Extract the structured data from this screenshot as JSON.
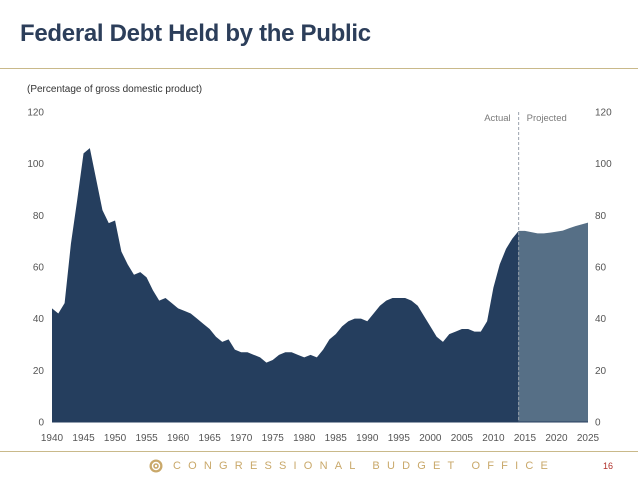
{
  "slide": {
    "title": "Federal Debt Held by the Public",
    "subtitle": "(Percentage of gross domestic product)",
    "footer": "CONGRESSIONAL BUDGET OFFICE",
    "page_number": "16"
  },
  "colors": {
    "actual": "#253e5e",
    "projected": "#566f86",
    "title": "#2c3e5a",
    "accent": "#c9a86a"
  },
  "chart_data": {
    "type": "area",
    "title": "Federal Debt Held by the Public",
    "ylabel": "Percentage of gross domestic product",
    "xlim": [
      1940,
      2025
    ],
    "ylim": [
      0,
      120
    ],
    "x_ticks": [
      1940,
      1945,
      1950,
      1955,
      1960,
      1965,
      1970,
      1975,
      1980,
      1985,
      1990,
      1995,
      2000,
      2005,
      2010,
      2015,
      2020,
      2025
    ],
    "y_ticks": [
      0,
      20,
      40,
      60,
      80,
      100,
      120
    ],
    "split_year": 2014,
    "annotations": {
      "left": "Actual",
      "right": "Projected"
    },
    "series": [
      {
        "name": "Actual",
        "x": [
          1940,
          1941,
          1942,
          1943,
          1944,
          1945,
          1946,
          1947,
          1948,
          1949,
          1950,
          1951,
          1952,
          1953,
          1954,
          1955,
          1956,
          1957,
          1958,
          1959,
          1960,
          1961,
          1962,
          1963,
          1964,
          1965,
          1966,
          1967,
          1968,
          1969,
          1970,
          1971,
          1972,
          1973,
          1974,
          1975,
          1976,
          1977,
          1978,
          1979,
          1980,
          1981,
          1982,
          1983,
          1984,
          1985,
          1986,
          1987,
          1988,
          1989,
          1990,
          1991,
          1992,
          1993,
          1994,
          1995,
          1996,
          1997,
          1998,
          1999,
          2000,
          2001,
          2002,
          2003,
          2004,
          2005,
          2006,
          2007,
          2008,
          2009,
          2010,
          2011,
          2012,
          2013,
          2014
        ],
        "values": [
          44,
          42,
          46,
          69,
          86,
          104,
          106,
          94,
          82,
          77,
          78,
          66,
          61,
          57,
          58,
          56,
          51,
          47,
          48,
          46,
          44,
          43,
          42,
          40,
          38,
          36,
          33,
          31,
          32,
          28,
          27,
          27,
          26,
          25,
          23,
          24,
          26,
          27,
          27,
          26,
          25,
          26,
          25,
          28,
          32,
          34,
          37,
          39,
          40,
          40,
          39,
          42,
          45,
          47,
          48,
          48,
          48,
          47,
          45,
          41,
          37,
          33,
          31,
          34,
          35,
          36,
          36,
          35,
          35,
          39,
          52,
          61,
          67,
          71,
          74
        ]
      },
      {
        "name": "Projected",
        "x": [
          2014,
          2015,
          2016,
          2017,
          2018,
          2019,
          2020,
          2021,
          2022,
          2023,
          2024,
          2025
        ],
        "values": [
          74,
          74,
          73.5,
          73,
          73,
          73.3,
          73.7,
          74.1,
          75,
          75.8,
          76.5,
          77.2
        ]
      }
    ]
  }
}
